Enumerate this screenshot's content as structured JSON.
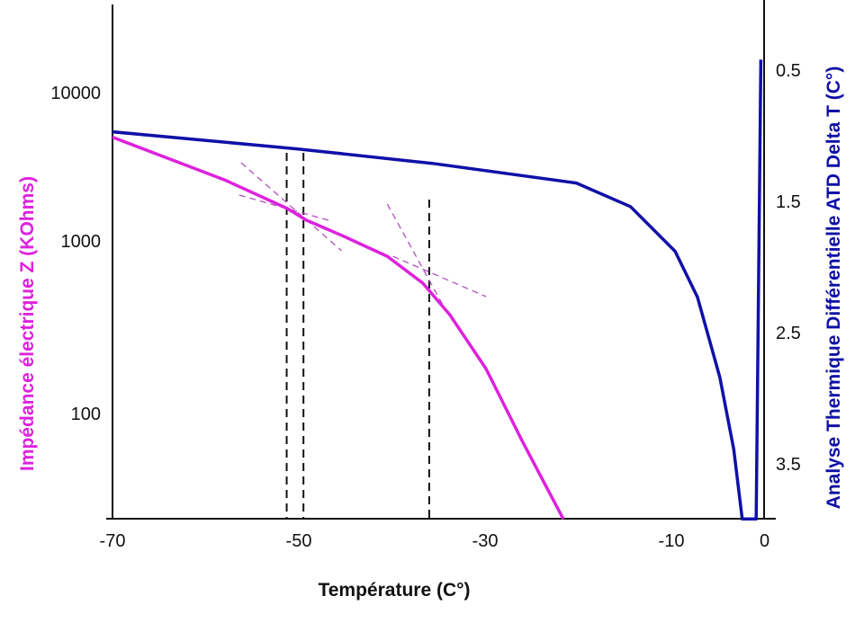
{
  "chart_data": {
    "type": "line",
    "title": "",
    "xlabel": "Température (C°)",
    "ylabel_left": "Impédance électrique Z (KOhms)",
    "ylabel_right": "Analyse Thermique Différentielle ATD Delta T (C°)",
    "xlim": [
      -70,
      0
    ],
    "x_ticks": [
      -70,
      -50,
      -30,
      -10,
      0
    ],
    "x_tick_labels": [
      "-70",
      "-50",
      "-30",
      "-10",
      "0"
    ],
    "y_left_scale": "log",
    "y_left_ticks": [
      10000,
      1000,
      100
    ],
    "y_left_tick_labels": [
      "10000",
      "1000",
      "100"
    ],
    "y_right_inverted": true,
    "y_right_ticks": [
      0.5,
      1.5,
      2.5,
      3.5
    ],
    "y_right_tick_labels": [
      "0.5",
      "1.5",
      "2.5",
      "3.5"
    ],
    "grid": false,
    "colors": {
      "impedance": "#dd22dd",
      "atd": "#1010a8",
      "tangent": "#b050c0",
      "marker": "#111111"
    },
    "series": [
      {
        "name": "Impédance Z",
        "axis": "left",
        "x": [
          -70,
          -57.9,
          -51.2,
          -49.2,
          -45.4,
          -40.5,
          -36.7,
          -33.8,
          -29.9,
          -26.0,
          -21.6
        ],
        "y": [
          5000,
          2570,
          1650,
          1380,
          1090,
          815,
          570,
          374,
          182,
          69,
          24.5
        ]
      },
      {
        "name": "ATD Delta T",
        "axis": "right",
        "x": [
          -70,
          -50.2,
          -35.7,
          -20.2,
          -14.4,
          -9.6,
          -7.2,
          -4.8,
          -3.3,
          -2.4,
          -0.9,
          -0.4
        ],
        "y": [
          0.97,
          1.1,
          1.21,
          1.36,
          1.54,
          1.88,
          2.23,
          2.84,
          3.39,
          3.92,
          3.92,
          0.42
        ]
      }
    ],
    "tangent_lines": [
      {
        "x": [
          -56.2,
          -45.4
        ],
        "y": [
          3365,
          877
        ]
      },
      {
        "x": [
          -56.4,
          -46.5
        ],
        "y": [
          2037,
          1360
        ]
      },
      {
        "x": [
          -40.5,
          -34.5
        ],
        "y": [
          1771,
          422
        ]
      },
      {
        "x": [
          -39.9,
          -29.9
        ],
        "y": [
          815,
          476
        ]
      }
    ],
    "vertical_markers": [
      {
        "x": -51.3,
        "y_top": 3926
      },
      {
        "x": -49.5,
        "y_top": 3926
      },
      {
        "x": -36.0,
        "y_top": 1901
      }
    ]
  }
}
